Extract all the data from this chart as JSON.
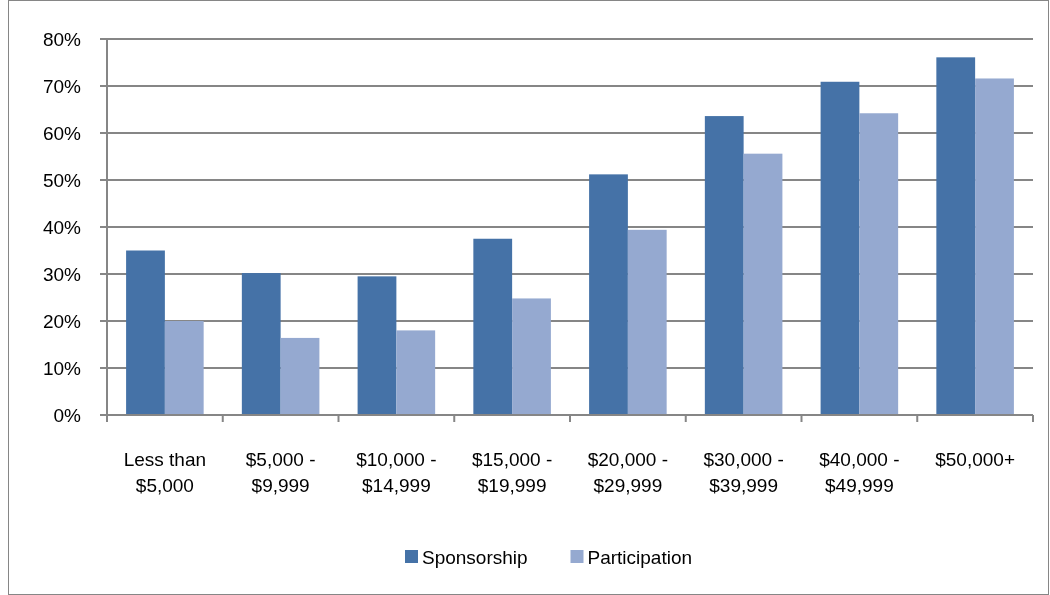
{
  "chart_data": {
    "type": "bar",
    "categories": [
      "Less than $5,000",
      "$5,000 - $9,999",
      "$10,000 - $14,999",
      "$15,000 - $19,999",
      "$20,000 - $29,999",
      "$30,000 - $39,999",
      "$40,000 - $49,999",
      "$50,000+"
    ],
    "series": [
      {
        "name": "Sponsorship",
        "color": "#4572a7",
        "values": [
          35,
          30.2,
          29.5,
          37.5,
          51.2,
          63.6,
          70.9,
          76.1
        ]
      },
      {
        "name": "Participation",
        "color": "#95a9d0",
        "values": [
          20,
          16.4,
          18,
          24.8,
          39.4,
          55.6,
          64.2,
          71.6
        ]
      }
    ],
    "ylim": [
      0,
      80
    ],
    "yticks": [
      {
        "value": 0,
        "label": "0%"
      },
      {
        "value": 10,
        "label": "10%"
      },
      {
        "value": 20,
        "label": "20%"
      },
      {
        "value": 30,
        "label": "30%"
      },
      {
        "value": 40,
        "label": "40%"
      },
      {
        "value": 50,
        "label": "50%"
      },
      {
        "value": 60,
        "label": "60%"
      },
      {
        "value": 70,
        "label": "70%"
      },
      {
        "value": 80,
        "label": "80%"
      }
    ],
    "grid": "y",
    "legend": "bottom"
  }
}
